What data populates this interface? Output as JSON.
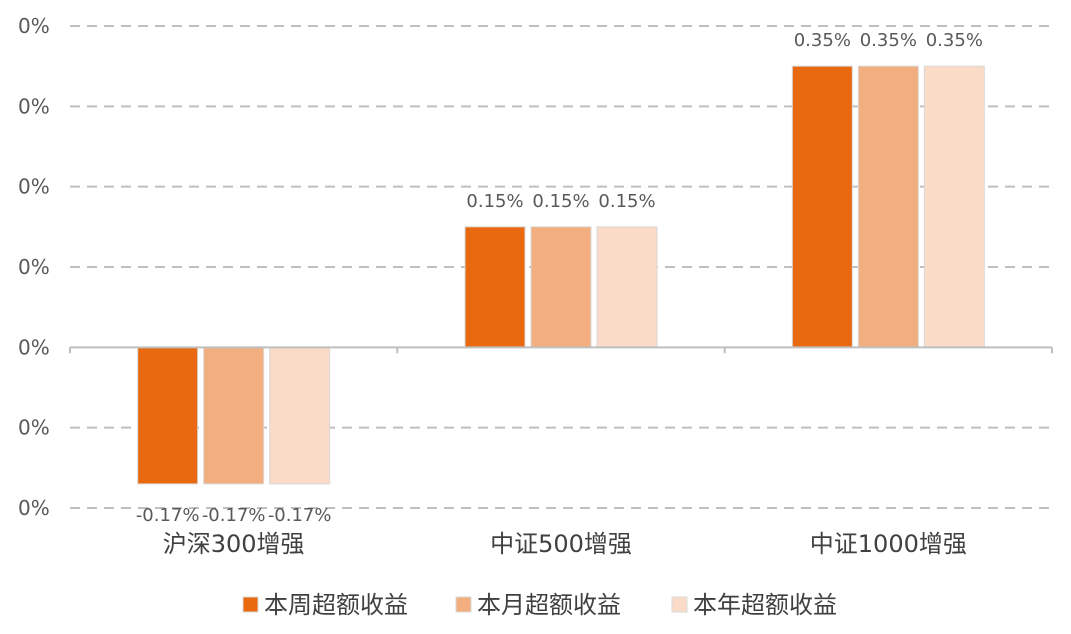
{
  "chart_data": {
    "type": "bar",
    "categories": [
      "沪深300增强",
      "中证500增强",
      "中证1000增强"
    ],
    "series": [
      {
        "name": "本周超额收益",
        "color": "#E8690F",
        "values": [
          -0.17,
          0.15,
          0.35
        ],
        "labels": [
          "-0.17%",
          "0.15%",
          "0.35%"
        ]
      },
      {
        "name": "本月超额收益",
        "color": "#F3AE7F",
        "values": [
          -0.17,
          0.15,
          0.35
        ],
        "labels": [
          "-0.17%",
          "0.15%",
          "0.35%"
        ]
      },
      {
        "name": "本年超额收益",
        "color": "#FADBC7",
        "values": [
          -0.17,
          0.15,
          0.35
        ],
        "labels": [
          "-0.17%",
          "0.15%",
          "0.35%"
        ]
      }
    ],
    "yticks": [
      0.4,
      0.3,
      0.2,
      0.1,
      0.0,
      -0.1,
      -0.2
    ],
    "ytick_labels": [
      "0%",
      "0%",
      "0%",
      "0%",
      "0%",
      "0%",
      "0%"
    ],
    "ylim": [
      -0.2,
      0.4
    ],
    "grid": true,
    "grid_style": "dashed",
    "legend_position": "bottom",
    "title": "",
    "xlabel": "",
    "ylabel": ""
  }
}
